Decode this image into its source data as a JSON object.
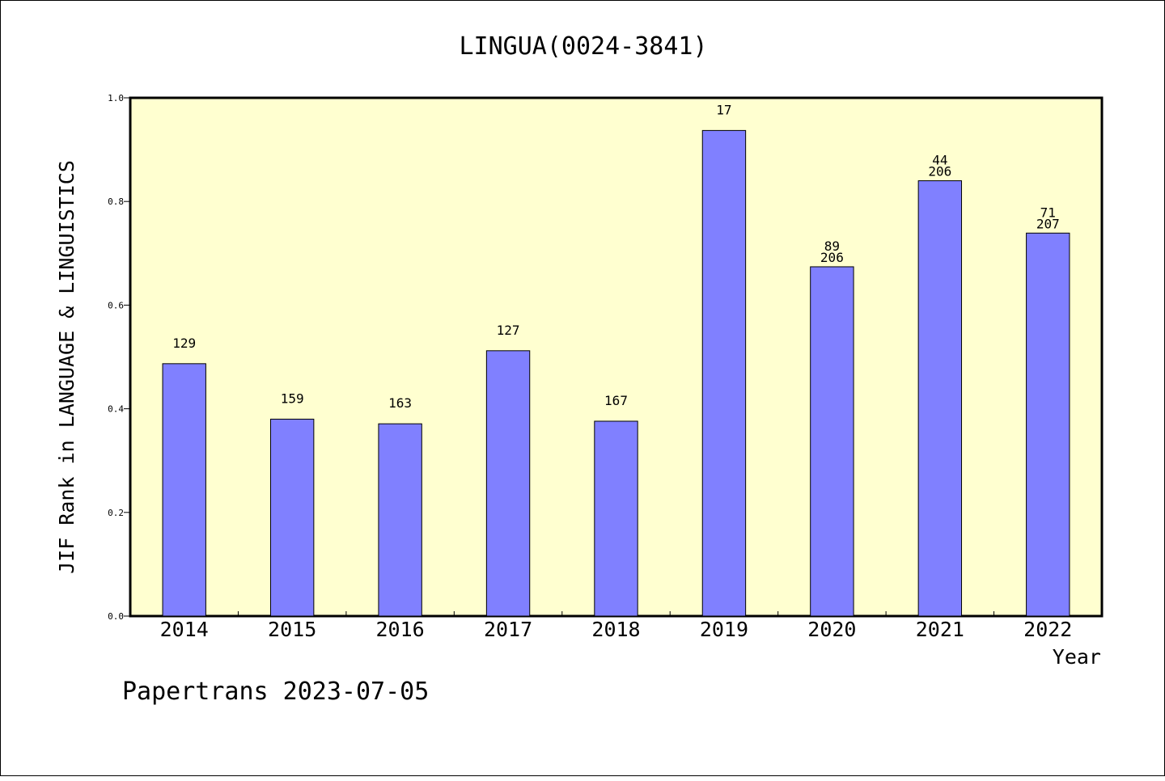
{
  "chart_data": {
    "type": "bar",
    "title": "LINGUA(0024-3841)",
    "ylabel": "JIF Rank in LANGUAGE & LINGUISTICS",
    "xlabel": "Year",
    "categories": [
      "2014",
      "2015",
      "2016",
      "2017",
      "2018",
      "2019",
      "2020",
      "2021",
      "2022"
    ],
    "values": [
      0.487,
      0.38,
      0.371,
      0.512,
      0.376,
      0.937,
      0.674,
      0.84,
      0.739
    ],
    "labels": [
      [
        "129"
      ],
      [
        "159"
      ],
      [
        "163"
      ],
      [
        "127"
      ],
      [
        "167"
      ],
      [
        "17"
      ],
      [
        "89",
        "206"
      ],
      [
        "44",
        "206"
      ],
      [
        "71",
        "207"
      ]
    ],
    "ylim": [
      0,
      1.0
    ],
    "yticks": [
      "0.0",
      "0.2",
      "0.4",
      "0.6",
      "0.8",
      "1.0"
    ],
    "grid": false,
    "colors": {
      "plot_background": "#ffffd0",
      "bar_fill": "#8080ff",
      "bar_stroke": "#000000"
    }
  },
  "footer": "Papertrans 2023-07-05"
}
